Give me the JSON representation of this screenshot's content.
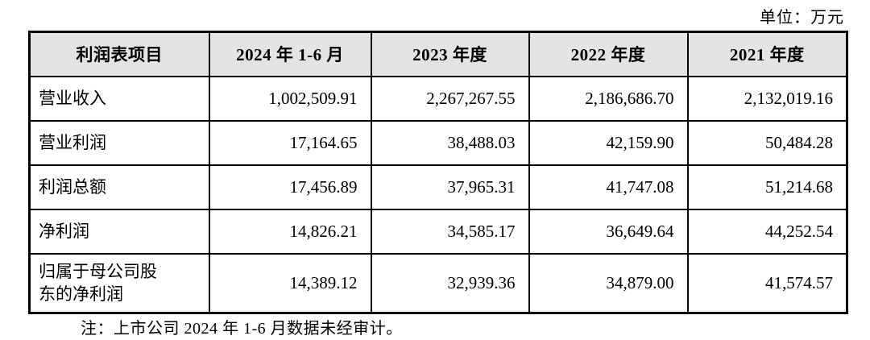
{
  "unit_label": "单位：万元",
  "table": {
    "columns": [
      "利润表项目",
      "2024 年 1-6 月",
      "2023 年度",
      "2022 年度",
      "2021 年度"
    ],
    "rows": [
      {
        "label": "营业收入",
        "values": [
          "1,002,509.91",
          "2,267,267.55",
          "2,186,686.70",
          "2,132,019.16"
        ]
      },
      {
        "label": "营业利润",
        "values": [
          "17,164.65",
          "38,488.03",
          "42,159.90",
          "50,484.28"
        ]
      },
      {
        "label": "利润总额",
        "values": [
          "17,456.89",
          "37,965.31",
          "41,747.08",
          "51,214.68"
        ]
      },
      {
        "label": "净利润",
        "values": [
          "14,826.21",
          "34,585.17",
          "36,649.64",
          "44,252.54"
        ]
      },
      {
        "label": "归属于母公司股东的净利润",
        "values": [
          "14,389.12",
          "32,939.36",
          "34,879.00",
          "41,574.57"
        ]
      }
    ]
  },
  "footnote": "注：上市公司 2024 年 1-6 月数据未经审计。",
  "colors": {
    "header_bg": "#e4e4e4",
    "border": "#000000",
    "text": "#000000",
    "background": "#ffffff"
  }
}
